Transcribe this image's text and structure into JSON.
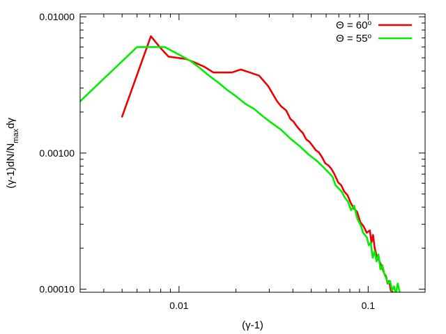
{
  "chart_data": {
    "type": "line",
    "title": "",
    "xlabel": "(γ-1)",
    "ylabel": {
      "main": "(γ-1)dN/N",
      "sub": "max",
      "tail": "dγ"
    },
    "x_scale": "log",
    "y_scale": "log",
    "xlim": [
      0.003,
      0.2
    ],
    "ylim": [
      9.5e-05,
      0.0105
    ],
    "x_ticks": [
      {
        "value": 0.01,
        "label": "0.01"
      },
      {
        "value": 0.1,
        "label": "0.1"
      }
    ],
    "y_ticks": [
      {
        "value": 0.01,
        "label": "0.01000"
      },
      {
        "value": 0.001,
        "label": "0.00100"
      },
      {
        "value": 0.0001,
        "label": "0.00010"
      }
    ],
    "grid": false,
    "legend_position": "top-right",
    "series": [
      {
        "name": "Θ = 60",
        "name_sup": "o",
        "color": "#ee0000",
        "x": [
          0.005,
          0.0071,
          0.0079,
          0.0088,
          0.0098,
          0.0109,
          0.0122,
          0.0136,
          0.0152,
          0.017,
          0.019,
          0.0212,
          0.0237,
          0.0265,
          0.0296,
          0.033,
          0.0347,
          0.0369,
          0.0388,
          0.0403,
          0.0418,
          0.0435,
          0.0452,
          0.047,
          0.0489,
          0.0508,
          0.0528,
          0.0549,
          0.0571,
          0.0593,
          0.0617,
          0.0641,
          0.0666,
          0.0693,
          0.072,
          0.0748,
          0.0778,
          0.0809,
          0.0841,
          0.0874,
          0.0909,
          0.0945,
          0.0982,
          0.1021,
          0.1041,
          0.1061,
          0.1083,
          0.1104,
          0.1126,
          0.1148,
          0.1171,
          0.1194,
          0.1218,
          0.1242,
          0.1267,
          0.1292,
          0.1318,
          0.1344
        ],
        "y": [
          0.00185,
          0.0072,
          0.006,
          0.0051,
          0.005,
          0.0049,
          0.0046,
          0.0043,
          0.0039,
          0.0039,
          0.0039,
          0.0041,
          0.0039,
          0.0037,
          0.0031,
          0.0024,
          0.0022,
          0.00205,
          0.00178,
          0.0017,
          0.00158,
          0.00148,
          0.0014,
          0.00126,
          0.00121,
          0.00113,
          0.00105,
          0.00101,
          0.00093,
          0.00084,
          0.00081,
          0.00076,
          0.00069,
          0.00061,
          0.00058,
          0.00052,
          0.00049,
          0.00043,
          0.00039,
          0.00037,
          0.00031,
          0.00029,
          0.00026,
          0.00027,
          0.00022,
          0.00025,
          0.0002,
          0.00018,
          0.00017,
          0.00016,
          0.00015,
          0.00014,
          0.00013,
          0.000125,
          0.00011,
          0.000115,
          9.8e-05,
          9.6e-05
        ]
      },
      {
        "name": "Θ = 55",
        "name_sup": "o",
        "color": "#00ee00",
        "x": [
          0.003,
          0.006,
          0.0084,
          0.0102,
          0.0116,
          0.0129,
          0.0144,
          0.0161,
          0.018,
          0.0201,
          0.0224,
          0.025,
          0.0279,
          0.0311,
          0.0347,
          0.0387,
          0.0432,
          0.0482,
          0.0538,
          0.06,
          0.0623,
          0.0647,
          0.0672,
          0.0698,
          0.0725,
          0.0753,
          0.0782,
          0.0812,
          0.0843,
          0.0876,
          0.0897,
          0.0918,
          0.094,
          0.0962,
          0.0985,
          0.1008,
          0.1032,
          0.1057,
          0.1082,
          0.1108,
          0.1134,
          0.1161,
          0.1189,
          0.1217,
          0.1246,
          0.1276,
          0.1306,
          0.1337,
          0.1369,
          0.1401,
          0.1434,
          0.1468
        ],
        "y": [
          0.0024,
          0.006,
          0.006,
          0.0052,
          0.0047,
          0.0042,
          0.0037,
          0.0033,
          0.0029,
          0.0026,
          0.0023,
          0.0021,
          0.00185,
          0.00165,
          0.00148,
          0.00128,
          0.00113,
          0.00098,
          0.00087,
          0.00075,
          0.00071,
          0.00067,
          0.00058,
          0.00055,
          0.00052,
          0.00047,
          0.00044,
          0.00038,
          0.00041,
          0.00033,
          0.00031,
          0.00029,
          0.00026,
          0.00025,
          0.00024,
          0.00021,
          0.00022,
          0.00017,
          0.00019,
          0.00016,
          0.00018,
          0.00014,
          0.00015,
          0.00013,
          0.00012,
          0.00011,
          0.000115,
          9.8e-05,
          0.000105,
          9.2e-05,
          0.00011,
          9.5e-05
        ]
      }
    ]
  }
}
